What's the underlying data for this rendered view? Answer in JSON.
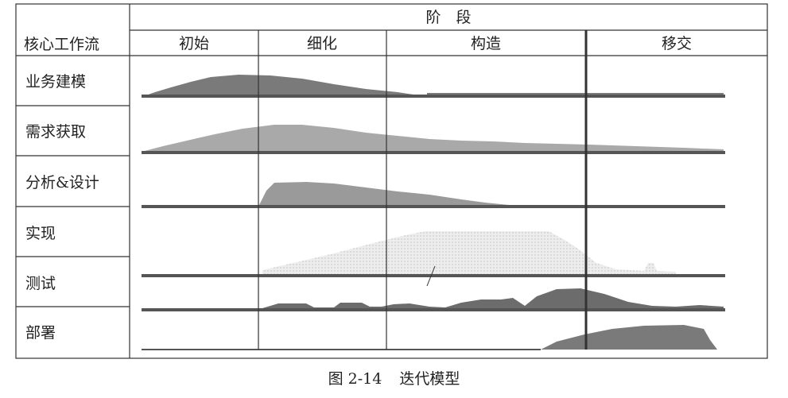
{
  "header": {
    "phase_title": "阶　段",
    "workflow_title": "核心工作流"
  },
  "phases": [
    "初始",
    "细化",
    "构造",
    "移交"
  ],
  "workflows": [
    "业务建模",
    "需求获取",
    "分析&设计",
    "实现",
    "测试",
    "部署"
  ],
  "caption": {
    "number": "图 2-14",
    "title": "迭代模型"
  },
  "colors": {
    "dark": "#707070",
    "medium": "#9a9a9a",
    "light": "#c8c8c8",
    "pale": "#e6e6e6",
    "line": "#444444"
  }
}
